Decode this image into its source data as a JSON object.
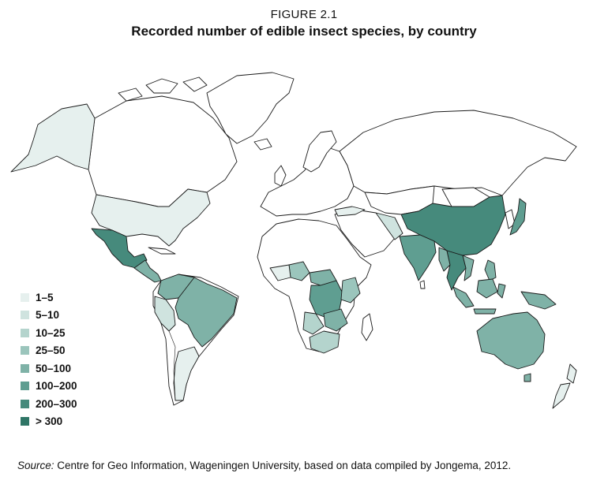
{
  "figure": {
    "label": "FIGURE 2.1",
    "title": "Recorded number of edible insect species, by country"
  },
  "legend": {
    "items": [
      {
        "label": "1–5",
        "color": "#e6f0ee"
      },
      {
        "label": "5–10",
        "color": "#cfe3df"
      },
      {
        "label": "10–25",
        "color": "#b4d4cd"
      },
      {
        "label": "25–50",
        "color": "#9bc5bc"
      },
      {
        "label": "50–100",
        "color": "#7fb2a7"
      },
      {
        "label": "100–200",
        "color": "#5f9e91"
      },
      {
        "label": "200–300",
        "color": "#468a7c"
      },
      {
        "label": "> 300",
        "color": "#2f7566"
      }
    ]
  },
  "map_regions": [
    {
      "name": "Alaska",
      "class_index": 0
    },
    {
      "name": "USA",
      "class_index": 0
    },
    {
      "name": "Mexico",
      "class_index": 6
    },
    {
      "name": "Central America",
      "class_index": 4
    },
    {
      "name": "Brazil",
      "class_index": 4
    },
    {
      "name": "Colombia",
      "class_index": 4
    },
    {
      "name": "Venezuela",
      "class_index": 4
    },
    {
      "name": "Ecuador / Peru",
      "class_index": 1
    },
    {
      "name": "Argentina",
      "class_index": 0
    },
    {
      "name": "DR Congo",
      "class_index": 5
    },
    {
      "name": "Central African Republic",
      "class_index": 4
    },
    {
      "name": "Nigeria",
      "class_index": 3
    },
    {
      "name": "Zambia",
      "class_index": 4
    },
    {
      "name": "South Africa",
      "class_index": 2
    },
    {
      "name": "China",
      "class_index": 6
    },
    {
      "name": "India",
      "class_index": 5
    },
    {
      "name": "Thailand",
      "class_index": 6
    },
    {
      "name": "Japan",
      "class_index": 5
    },
    {
      "name": "Australia",
      "class_index": 4
    },
    {
      "name": "Indonesia",
      "class_index": 4
    },
    {
      "name": "Papua New Guinea",
      "class_index": 4
    }
  ],
  "source": {
    "prefix": "Source:",
    "text": " Centre for Geo Information, Wageningen University, based on data compiled by Jongema, 2012."
  }
}
